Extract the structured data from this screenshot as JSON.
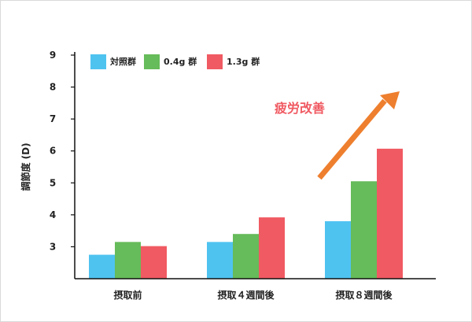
{
  "chart_data": {
    "type": "bar",
    "title": "",
    "xlabel": "",
    "ylabel": "調節度 (D)",
    "ylim": [
      2,
      9
    ],
    "yticks": [
      3,
      4,
      5,
      6,
      7,
      8,
      9
    ],
    "grid": false,
    "legend_position": "top-left",
    "categories": [
      "摂取前",
      "摂取４週間後",
      "摂取８週間後"
    ],
    "series": [
      {
        "name": "対照群",
        "color": "#4fc3f0",
        "values": [
          2.75,
          3.15,
          3.8
        ]
      },
      {
        "name": "0.4g 群",
        "color": "#66bb5a",
        "values": [
          3.15,
          3.4,
          5.05
        ]
      },
      {
        "name": "1.3g 群",
        "color": "#f05a62",
        "values": [
          3.02,
          3.92,
          6.07
        ]
      }
    ],
    "annotation": {
      "text": "疲労改善",
      "color": "#f05a62",
      "arrow_color": "#ee7f2e"
    }
  }
}
